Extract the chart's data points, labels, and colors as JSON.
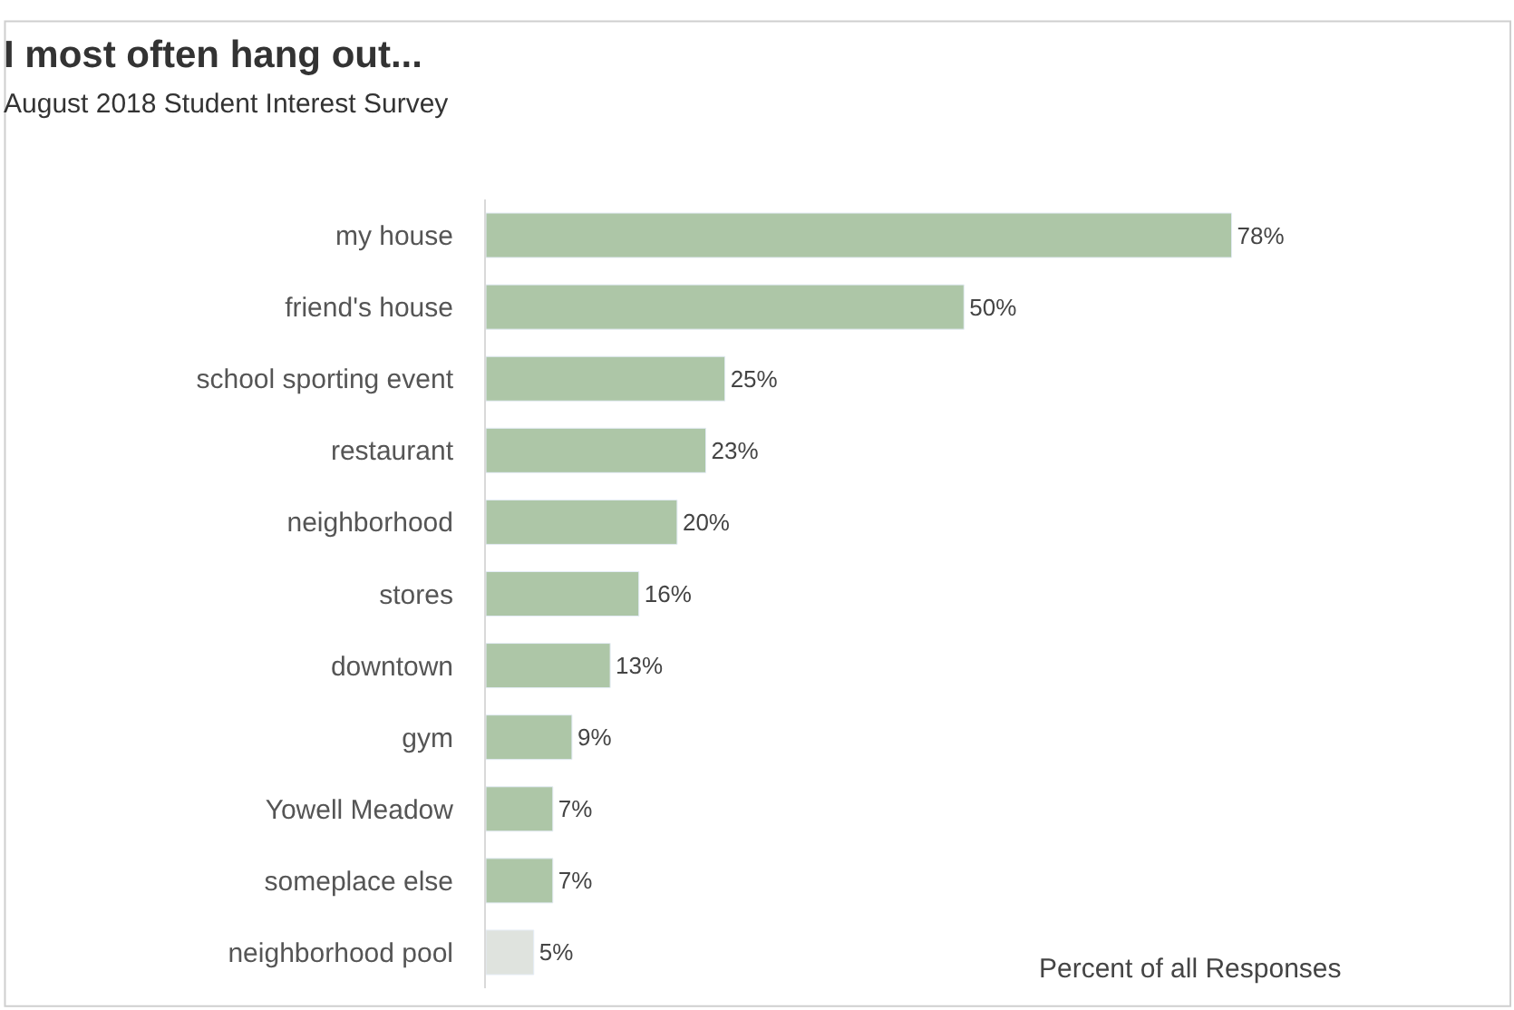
{
  "chart_data": {
    "type": "bar",
    "orientation": "horizontal",
    "title": "I most often hang out...",
    "subtitle": "August 2018 Student Interest Survey",
    "xlabel": "Percent of all Responses",
    "categories": [
      "my house",
      "friend's house",
      "school sporting event",
      "restaurant",
      "neighborhood",
      "stores",
      "downtown",
      "gym",
      "Yowell Meadow",
      "someplace else",
      "neighborhood pool"
    ],
    "values": [
      78,
      50,
      25,
      23,
      20,
      16,
      13,
      9,
      7,
      7,
      5
    ],
    "value_labels": [
      "78%",
      "50%",
      "25%",
      "23%",
      "20%",
      "16%",
      "13%",
      "9%",
      "7%",
      "7%",
      "5%"
    ],
    "colors": [
      "#adc6a7",
      "#adc6a7",
      "#adc6a7",
      "#adc6a7",
      "#adc6a7",
      "#adc6a7",
      "#adc6a7",
      "#adc6a7",
      "#adc6a7",
      "#adc6a7",
      "#dfe3de"
    ],
    "legend": false
  }
}
